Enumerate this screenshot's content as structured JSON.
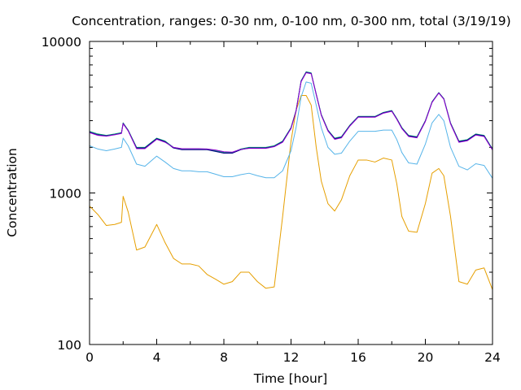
{
  "chart_data": {
    "type": "line",
    "title": "Concentration, ranges: 0-30 nm, 0-100 nm, 0-300 nm, total (3/19/19)",
    "xlabel": "Time [hour]",
    "ylabel": "Concentration",
    "xlim": [
      0,
      24
    ],
    "ylim": [
      100,
      10000
    ],
    "yscale": "log",
    "grid": false,
    "legend": "none",
    "xticks": [
      0,
      4,
      8,
      12,
      16,
      20,
      24
    ],
    "xtick_labels": [
      "0",
      "4",
      "8",
      "12",
      "16",
      "20",
      "24"
    ],
    "yticks": [
      100,
      1000,
      10000
    ],
    "ytick_labels": [
      "100",
      "1000",
      "10000"
    ],
    "x": [
      0,
      0.5,
      1,
      1.5,
      1.9,
      2,
      2.3,
      2.8,
      3.3,
      4,
      4.5,
      5,
      5.5,
      6,
      6.5,
      7,
      7.5,
      8,
      8.5,
      9,
      9.5,
      10,
      10.5,
      11,
      11.5,
      12,
      12.3,
      12.6,
      12.9,
      13.2,
      13.5,
      13.8,
      14.2,
      14.6,
      15,
      15.5,
      16,
      16.5,
      17,
      17.5,
      18,
      18.3,
      18.6,
      19,
      19.5,
      20,
      20.4,
      20.8,
      21.1,
      21.5,
      22,
      22.5,
      23,
      23.5,
      24
    ],
    "series": [
      {
        "color": "#E69F00",
        "values": [
          820,
          720,
          610,
          620,
          640,
          950,
          750,
          420,
          440,
          620,
          470,
          370,
          340,
          340,
          330,
          290,
          270,
          250,
          260,
          300,
          300,
          260,
          235,
          240,
          700,
          2200,
          3500,
          4400,
          4400,
          3800,
          2000,
          1200,
          850,
          760,
          900,
          1300,
          1650,
          1650,
          1600,
          1700,
          1650,
          1150,
          700,
          560,
          550,
          850,
          1350,
          1450,
          1300,
          700,
          260,
          250,
          310,
          320,
          230
        ]
      },
      {
        "color": "#56B4E9",
        "values": [
          2050,
          1950,
          1900,
          1950,
          2000,
          2300,
          2050,
          1550,
          1500,
          1750,
          1600,
          1450,
          1400,
          1400,
          1380,
          1380,
          1330,
          1280,
          1280,
          1320,
          1350,
          1300,
          1260,
          1260,
          1400,
          1900,
          2700,
          4300,
          5400,
          5300,
          3800,
          2700,
          2000,
          1800,
          1830,
          2200,
          2550,
          2550,
          2550,
          2600,
          2600,
          2250,
          1850,
          1580,
          1550,
          2100,
          2900,
          3300,
          3000,
          2000,
          1500,
          1420,
          1560,
          1520,
          1250
        ]
      },
      {
        "color": "#009E73",
        "values": [
          2550,
          2450,
          2400,
          2450,
          2500,
          2900,
          2600,
          2000,
          2000,
          2300,
          2200,
          2000,
          1950,
          1950,
          1950,
          1950,
          1900,
          1850,
          1850,
          1950,
          2000,
          2000,
          2000,
          2050,
          2200,
          2700,
          3500,
          5500,
          6300,
          6200,
          4500,
          3300,
          2600,
          2300,
          2350,
          2800,
          3200,
          3200,
          3200,
          3400,
          3500,
          3100,
          2700,
          2400,
          2350,
          3000,
          4000,
          4600,
          4200,
          2900,
          2200,
          2250,
          2450,
          2400,
          1950
        ]
      },
      {
        "color": "#000080",
        "values": [
          2520,
          2420,
          2380,
          2430,
          2480,
          2880,
          2580,
          1980,
          1980,
          2280,
          2180,
          1980,
          1930,
          1930,
          1930,
          1930,
          1880,
          1830,
          1830,
          1930,
          1980,
          1980,
          1980,
          2030,
          2180,
          2680,
          3480,
          5450,
          6250,
          6150,
          4480,
          3280,
          2580,
          2280,
          2330,
          2780,
          3180,
          3180,
          3180,
          3380,
          3480,
          3080,
          2680,
          2380,
          2330,
          2980,
          3980,
          4580,
          4180,
          2880,
          2180,
          2230,
          2430,
          2380,
          1930
        ]
      },
      {
        "color": "#9400D3",
        "values": [
          2500,
          2400,
          2370,
          2420,
          2470,
          2860,
          2570,
          1960,
          1960,
          2260,
          2160,
          2000,
          1960,
          1960,
          1960,
          1950,
          1920,
          1870,
          1860,
          1940,
          1970,
          1970,
          1970,
          2020,
          2160,
          2660,
          3460,
          5420,
          6220,
          6120,
          4460,
          3260,
          2560,
          2260,
          2310,
          2760,
          3160,
          3160,
          3160,
          3360,
          3460,
          3060,
          2660,
          2360,
          2310,
          2960,
          3960,
          4560,
          4160,
          2860,
          2160,
          2210,
          2410,
          2360,
          1920
        ]
      }
    ]
  }
}
